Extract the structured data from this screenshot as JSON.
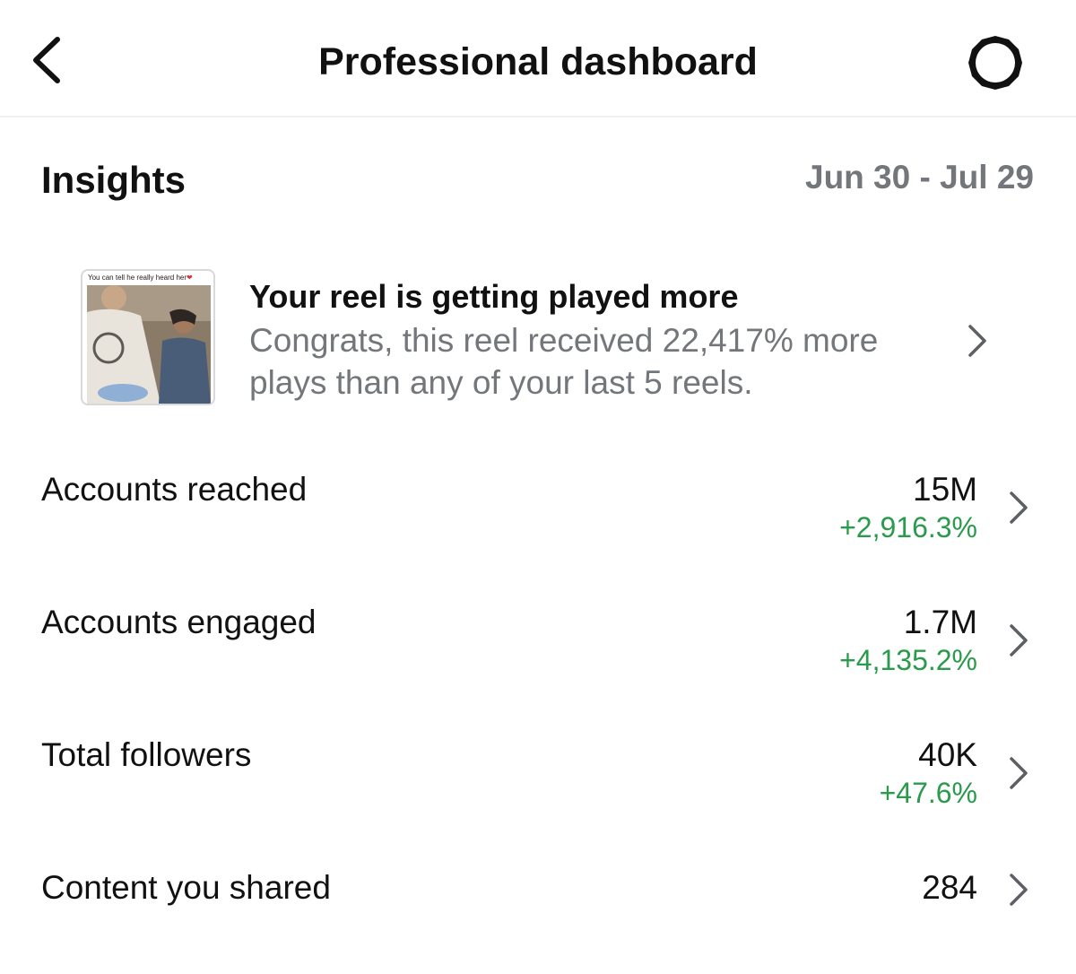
{
  "header": {
    "title": "Professional dashboard"
  },
  "insights": {
    "title": "Insights",
    "date_range": "Jun 30 - Jul 29"
  },
  "reel_card": {
    "title": "Your reel is getting played more",
    "description": "Congrats, this reel received 22,417% more plays than any of your last 5 reels.",
    "thumbnail_caption": "You can tell he really heard her"
  },
  "metrics": [
    {
      "label": "Accounts reached",
      "value": "15M",
      "change": "+2,916.3%"
    },
    {
      "label": "Accounts engaged",
      "value": "1.7M",
      "change": "+4,135.2%"
    },
    {
      "label": "Total followers",
      "value": "40K",
      "change": "+47.6%"
    },
    {
      "label": "Content you shared",
      "value": "284"
    }
  ],
  "colors": {
    "text_primary": "#111111",
    "text_secondary": "#73767a",
    "positive_change": "#2a9a4c",
    "divider": "#efefef"
  },
  "icons": {
    "back": "chevron-left-icon",
    "settings": "gear-icon",
    "row_chevron": "chevron-right-icon"
  }
}
